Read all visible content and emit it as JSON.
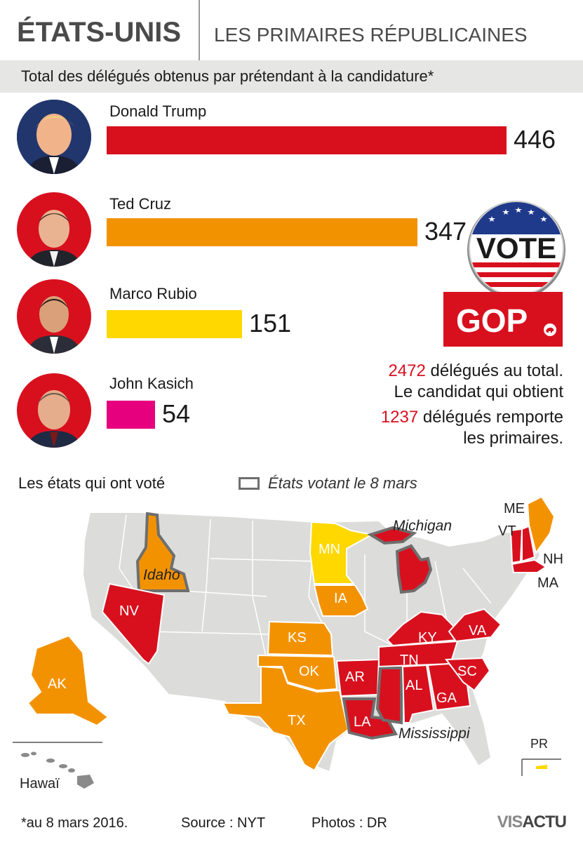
{
  "header": {
    "title": "ÉTATS-UNIS",
    "subtitle": "LES PRIMAIRES RÉPUBLICAINES"
  },
  "chart_data": {
    "type": "bar",
    "orientation": "horizontal",
    "title": "Total des délégués obtenus par prétendant à la candidature*",
    "categories": [
      "Donald Trump",
      "Ted Cruz",
      "Marco Rubio",
      "John Kasich"
    ],
    "values": [
      446,
      347,
      151,
      54
    ],
    "colors": [
      "#d8101e",
      "#f39200",
      "#ffd800",
      "#e6007e"
    ],
    "xlim": [
      0,
      446
    ],
    "grid": false,
    "legend": "none"
  },
  "candidates": [
    {
      "name": "Donald Trump",
      "value_label": "446"
    },
    {
      "name": "Ted Cruz",
      "value_label": "347"
    },
    {
      "name": "Marco Rubio",
      "value_label": "151"
    },
    {
      "name": "John Kasich",
      "value_label": "54"
    }
  ],
  "badge": {
    "vote_text": "VOTE",
    "gop_text": "GOP"
  },
  "totals": {
    "line1_num": "2472",
    "line1_text": " délégués au total.",
    "line2_text": "Le candidat qui obtient",
    "line3_num": "1237",
    "line3_text": " délégués remporte",
    "line4_text": "les primaires."
  },
  "map": {
    "title": "Les états qui ont voté",
    "legend_label": "États votant le 8 mars",
    "colors": {
      "trump": "#d8101e",
      "cruz": "#f39200",
      "rubio": "#ffd800",
      "not_voted": "#dcdcda",
      "march8_outline": "#6e6e6e"
    },
    "state_labels": {
      "me": "ME",
      "vt": "VT",
      "nh": "NH",
      "ma": "MA",
      "mn": "MN",
      "ia": "IA",
      "nv": "NV",
      "ks": "KS",
      "ok": "OK",
      "tx": "TX",
      "ky": "KY",
      "va": "VA",
      "tn": "TN",
      "ar": "AR",
      "al": "AL",
      "ga": "GA",
      "sc": "SC",
      "la": "LA",
      "ak": "AK",
      "pr": "PR",
      "idaho": "Idaho",
      "michigan": "Michigan",
      "mississippi": "Mississippi",
      "hawaii": "Hawaï"
    }
  },
  "footer": {
    "note": "*au 8 mars 2016.",
    "source": "Source : NYT",
    "photos": "Photos : DR",
    "logo_a": "VIS",
    "logo_b": "ACTU"
  }
}
